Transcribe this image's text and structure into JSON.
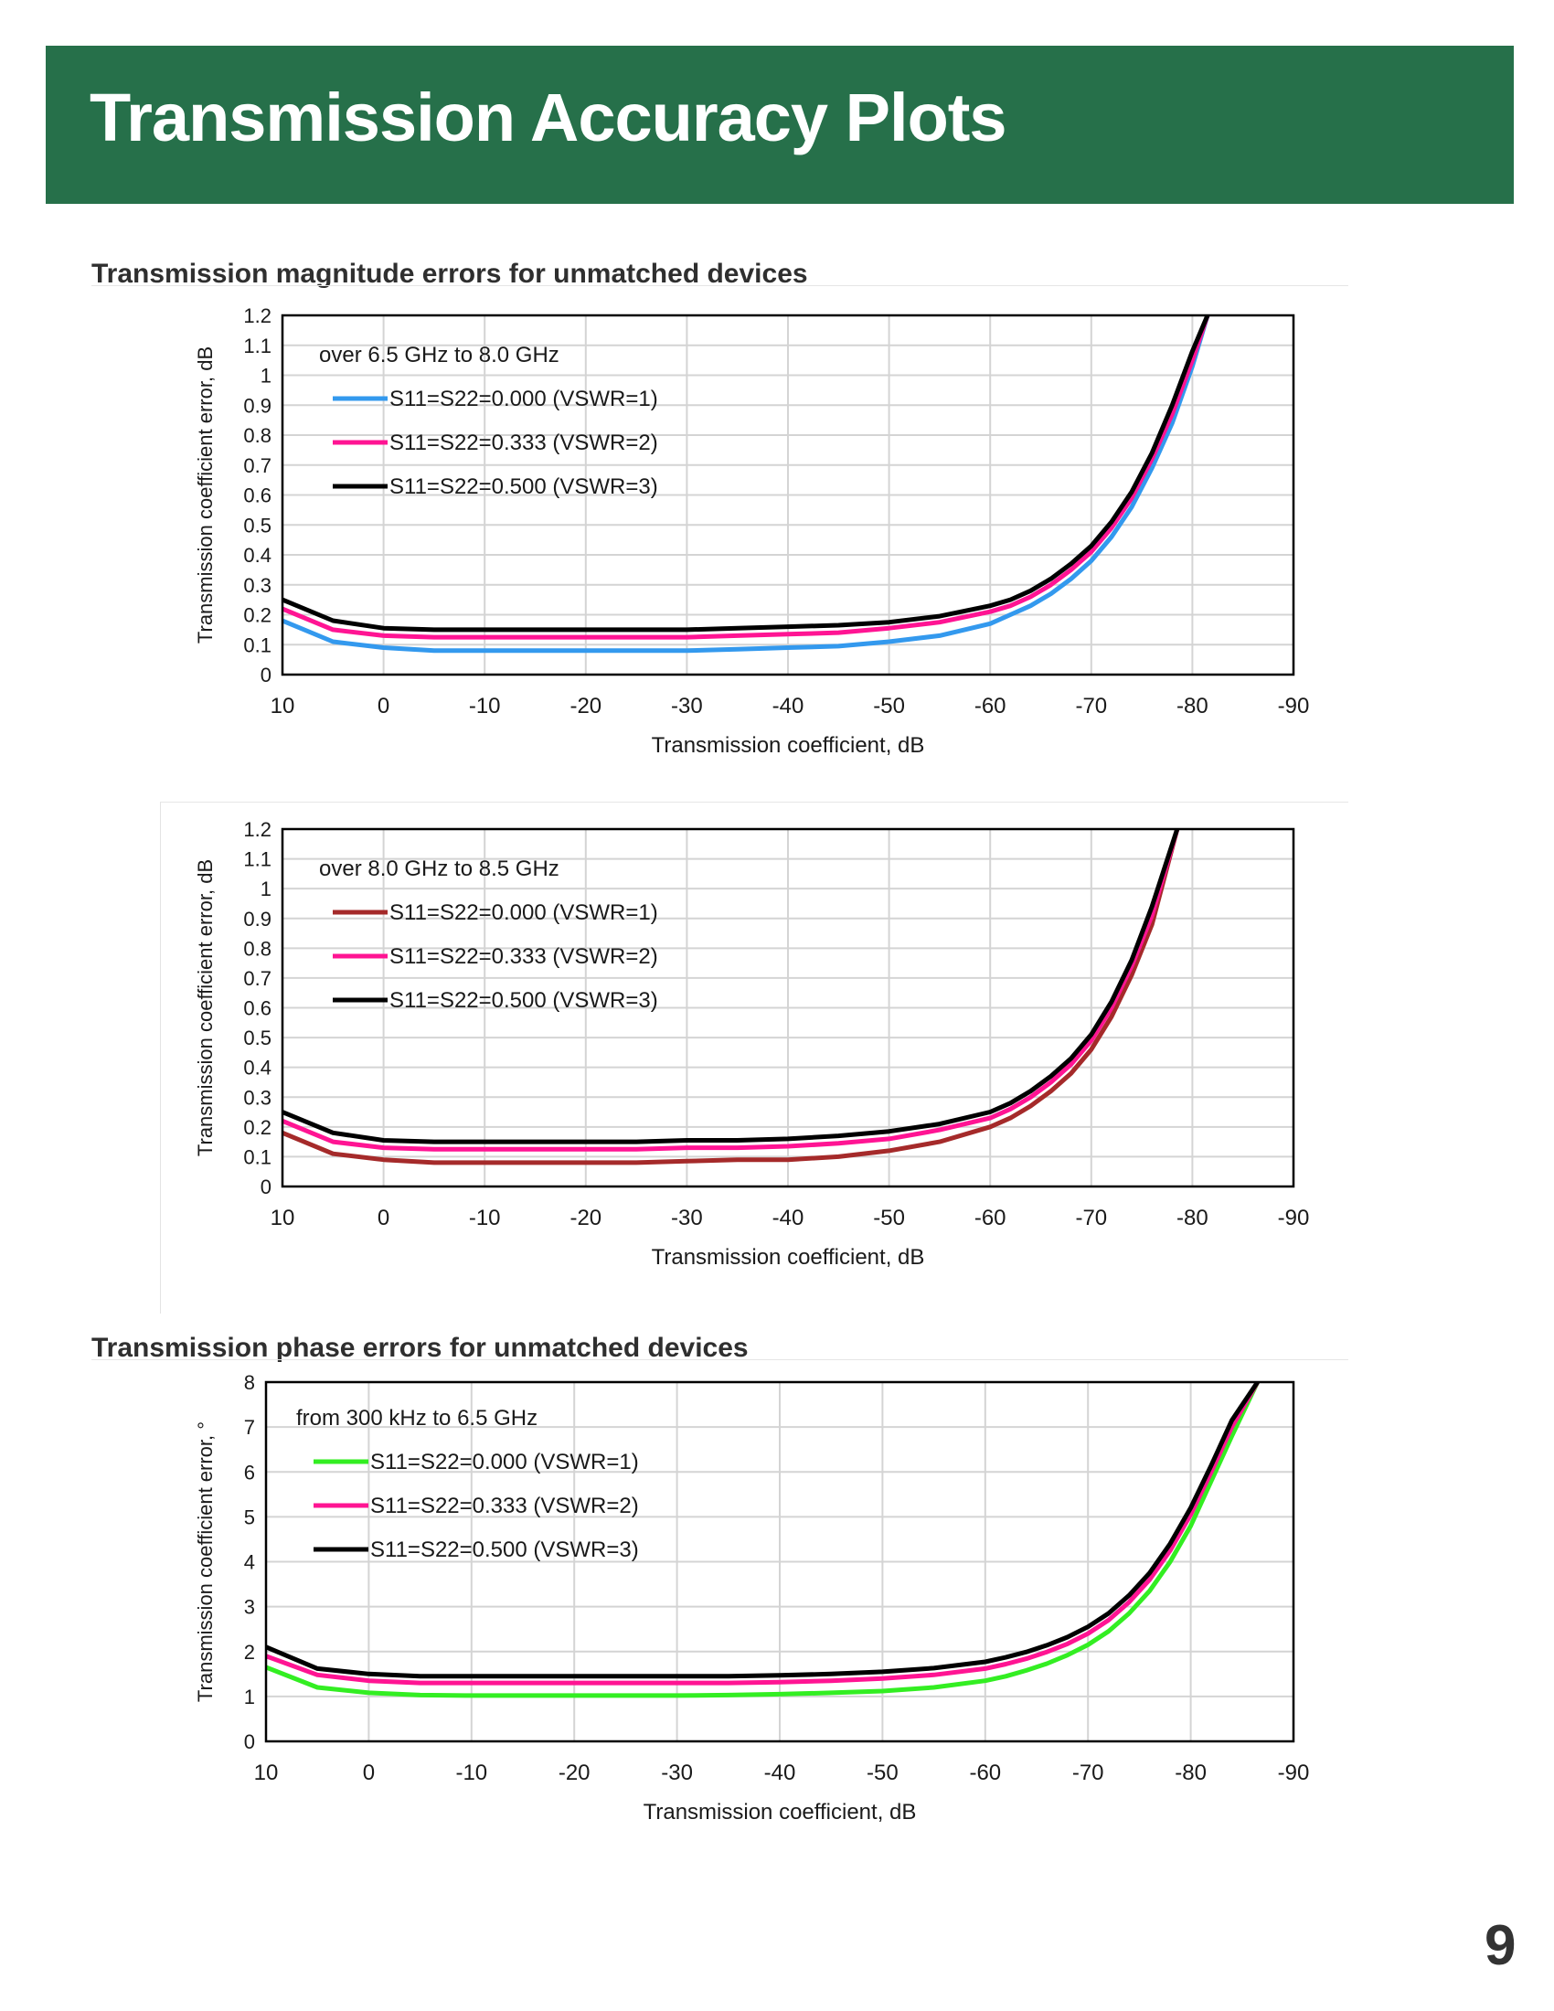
{
  "page": {
    "title": "Transmission Accuracy Plots",
    "page_number": "9",
    "colors": {
      "banner": "#26704a"
    }
  },
  "sections": {
    "magnitude_title": "Transmission magnitude errors for unmatched devices",
    "phase_title": "Transmission phase errors for unmatched devices"
  },
  "chart_data": [
    {
      "type": "line",
      "annotation": "over 6.5 GHz to 8.0 GHz",
      "xlabel": "Transmission coefficient, dB",
      "ylabel": "Transmission coefficient error, dB",
      "xlim": [
        10,
        -90
      ],
      "ylim": [
        0,
        1.2
      ],
      "x_ticks": [
        "10",
        "0",
        "-10",
        "-20",
        "-30",
        "-40",
        "-50",
        "-60",
        "-70",
        "-80",
        "-90"
      ],
      "y_ticks": [
        "0",
        "0.1",
        "0.2",
        "0.3",
        "0.4",
        "0.5",
        "0.6",
        "0.7",
        "0.8",
        "0.9",
        "1",
        "1.1",
        "1.2"
      ],
      "grid": true,
      "legend_position": "top-left",
      "x": [
        10,
        5,
        0,
        -5,
        -10,
        -15,
        -20,
        -25,
        -30,
        -35,
        -40,
        -45,
        -50,
        -55,
        -60,
        -62,
        -64,
        -66,
        -68,
        -70,
        -72,
        -74,
        -76,
        -78,
        -80,
        -81.5
      ],
      "series": [
        {
          "name": "S11=S22=0.000 (VSWR=1)",
          "color": "#3399ee",
          "values": [
            0.18,
            0.11,
            0.09,
            0.08,
            0.08,
            0.08,
            0.08,
            0.08,
            0.08,
            0.085,
            0.09,
            0.095,
            0.11,
            0.13,
            0.17,
            0.2,
            0.23,
            0.27,
            0.32,
            0.38,
            0.46,
            0.56,
            0.69,
            0.84,
            1.03,
            1.2
          ]
        },
        {
          "name": "S11=S22=0.333 (VSWR=2)",
          "color": "#ff1493",
          "values": [
            0.22,
            0.15,
            0.13,
            0.125,
            0.125,
            0.125,
            0.125,
            0.125,
            0.125,
            0.13,
            0.135,
            0.14,
            0.155,
            0.175,
            0.21,
            0.23,
            0.26,
            0.3,
            0.35,
            0.41,
            0.49,
            0.59,
            0.72,
            0.87,
            1.05,
            1.2
          ]
        },
        {
          "name": "S11=S22=0.500 (VSWR=3)",
          "color": "#000000",
          "values": [
            0.25,
            0.18,
            0.155,
            0.15,
            0.15,
            0.15,
            0.15,
            0.15,
            0.15,
            0.155,
            0.16,
            0.165,
            0.175,
            0.195,
            0.23,
            0.25,
            0.28,
            0.32,
            0.37,
            0.43,
            0.51,
            0.61,
            0.74,
            0.9,
            1.08,
            1.2
          ]
        }
      ]
    },
    {
      "type": "line",
      "annotation": "over 8.0 GHz to 8.5 GHz",
      "xlabel": "Transmission coefficient, dB",
      "ylabel": "Transmission coefficient error, dB",
      "xlim": [
        10,
        -90
      ],
      "ylim": [
        0,
        1.2
      ],
      "x_ticks": [
        "10",
        "0",
        "-10",
        "-20",
        "-30",
        "-40",
        "-50",
        "-60",
        "-70",
        "-80",
        "-90"
      ],
      "y_ticks": [
        "0",
        "0.1",
        "0.2",
        "0.3",
        "0.4",
        "0.5",
        "0.6",
        "0.7",
        "0.8",
        "0.9",
        "1",
        "1.1",
        "1.2"
      ],
      "grid": true,
      "legend_position": "top-left",
      "x": [
        10,
        5,
        0,
        -5,
        -10,
        -15,
        -20,
        -25,
        -30,
        -35,
        -40,
        -45,
        -50,
        -55,
        -60,
        -62,
        -64,
        -66,
        -68,
        -70,
        -72,
        -74,
        -76,
        -78.5
      ],
      "series": [
        {
          "name": "S11=S22=0.000 (VSWR=1)",
          "color": "#a52a2a",
          "values": [
            0.18,
            0.11,
            0.09,
            0.08,
            0.08,
            0.08,
            0.08,
            0.08,
            0.085,
            0.09,
            0.09,
            0.1,
            0.12,
            0.15,
            0.2,
            0.23,
            0.27,
            0.32,
            0.38,
            0.46,
            0.57,
            0.71,
            0.88,
            1.2
          ]
        },
        {
          "name": "S11=S22=0.333 (VSWR=2)",
          "color": "#ff1493",
          "values": [
            0.22,
            0.15,
            0.13,
            0.125,
            0.125,
            0.125,
            0.125,
            0.125,
            0.13,
            0.13,
            0.135,
            0.145,
            0.16,
            0.19,
            0.23,
            0.26,
            0.3,
            0.35,
            0.41,
            0.49,
            0.6,
            0.74,
            0.91,
            1.2
          ]
        },
        {
          "name": "S11=S22=0.500 (VSWR=3)",
          "color": "#000000",
          "values": [
            0.25,
            0.18,
            0.155,
            0.15,
            0.15,
            0.15,
            0.15,
            0.15,
            0.155,
            0.155,
            0.16,
            0.17,
            0.185,
            0.21,
            0.25,
            0.28,
            0.32,
            0.37,
            0.43,
            0.51,
            0.62,
            0.76,
            0.94,
            1.2
          ]
        }
      ]
    },
    {
      "type": "line",
      "annotation": "from 300 kHz to 6.5 GHz",
      "xlabel": "Transmission coefficient, dB",
      "ylabel": "Transmission coefficient error, °",
      "xlim": [
        10,
        -90
      ],
      "ylim": [
        0,
        8
      ],
      "x_ticks": [
        "10",
        "0",
        "-10",
        "-20",
        "-30",
        "-40",
        "-50",
        "-60",
        "-70",
        "-80",
        "-90"
      ],
      "y_ticks": [
        "0",
        "1",
        "2",
        "3",
        "4",
        "5",
        "6",
        "7",
        "8"
      ],
      "grid": true,
      "legend_position": "top-left",
      "x": [
        10,
        5,
        0,
        -5,
        -10,
        -15,
        -20,
        -25,
        -30,
        -35,
        -40,
        -45,
        -50,
        -55,
        -60,
        -62,
        -64,
        -66,
        -68,
        -70,
        -72,
        -74,
        -76,
        -78,
        -80,
        -82,
        -84,
        -86.5
      ],
      "series": [
        {
          "name": "S11=S22=0.000 (VSWR=1)",
          "color": "#33ee22",
          "values": [
            1.65,
            1.2,
            1.08,
            1.03,
            1.02,
            1.02,
            1.02,
            1.02,
            1.02,
            1.03,
            1.05,
            1.08,
            1.12,
            1.2,
            1.35,
            1.45,
            1.58,
            1.73,
            1.92,
            2.15,
            2.45,
            2.85,
            3.35,
            4.0,
            4.8,
            5.8,
            6.8,
            8.0
          ]
        },
        {
          "name": "S11=S22=0.333 (VSWR=2)",
          "color": "#ff1493",
          "values": [
            1.9,
            1.48,
            1.35,
            1.3,
            1.3,
            1.3,
            1.3,
            1.3,
            1.3,
            1.3,
            1.32,
            1.35,
            1.4,
            1.48,
            1.62,
            1.72,
            1.84,
            1.99,
            2.17,
            2.4,
            2.7,
            3.1,
            3.6,
            4.25,
            5.05,
            6.0,
            7.0,
            8.0
          ]
        },
        {
          "name": "S11=S22=0.500 (VSWR=3)",
          "color": "#000000",
          "values": [
            2.1,
            1.62,
            1.5,
            1.45,
            1.45,
            1.45,
            1.45,
            1.45,
            1.45,
            1.45,
            1.47,
            1.5,
            1.55,
            1.63,
            1.77,
            1.87,
            1.99,
            2.14,
            2.32,
            2.55,
            2.85,
            3.25,
            3.75,
            4.4,
            5.2,
            6.15,
            7.15,
            8.0
          ]
        }
      ]
    }
  ]
}
